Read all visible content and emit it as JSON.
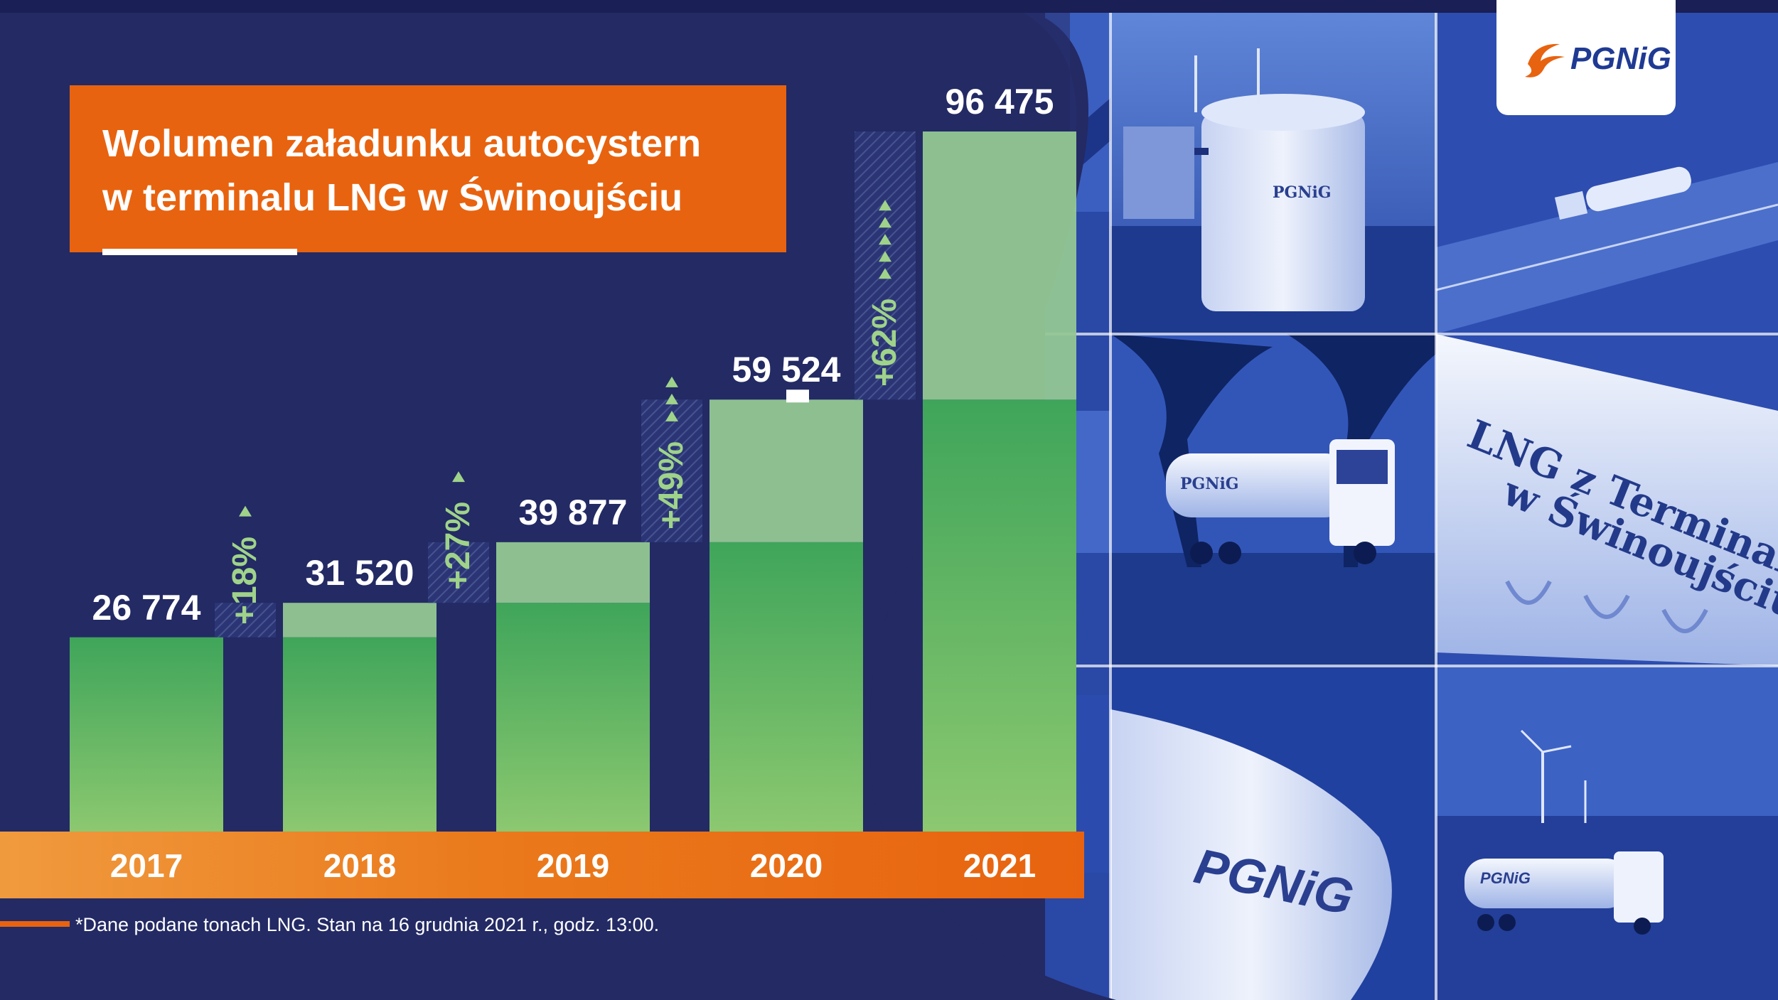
{
  "title": {
    "line1": "Wolumen załadunku autocystern",
    "line2": "w terminalu LNG w Świnoujściu"
  },
  "chart_data": {
    "type": "bar",
    "categories": [
      "2017",
      "2018",
      "2019",
      "2020",
      "2021"
    ],
    "values": [
      26774,
      31520,
      39877,
      59524,
      96475
    ],
    "value_labels": [
      "26 774",
      "31 520",
      "39 877",
      "59 524",
      "96 475"
    ],
    "growth_labels": [
      "+18%",
      "+27%",
      "+49%",
      "+62%"
    ],
    "ylim": [
      0,
      96475
    ],
    "grid": false,
    "legend": "none"
  },
  "footnote": "*Dane podane tonach LNG. Stan na 16 grudnia 2021 r., godz. 13:00.",
  "logo": {
    "text": "PGNiG"
  },
  "photo_texts": {
    "tank_logo": "PGNiG",
    "truck_logo_1": "PGNiG",
    "trailer_line1": "LNG z Terminalu",
    "trailer_line2": "w Świnoujściu",
    "tank_truck_logo": "PGNiG",
    "truck_logo_2": "PGNiG"
  },
  "colors": {
    "background": "#232a64",
    "accent_orange": "#e8630f",
    "bar_dark_green": "#3fa55a",
    "bar_light_green": "#8cc870",
    "bar_increment": "#93c793",
    "growth_text": "#9fd38a",
    "photo_tint": "#2f4fb0"
  },
  "icons": [
    "pgnig-flame-icon",
    "triangle-up-icon"
  ]
}
